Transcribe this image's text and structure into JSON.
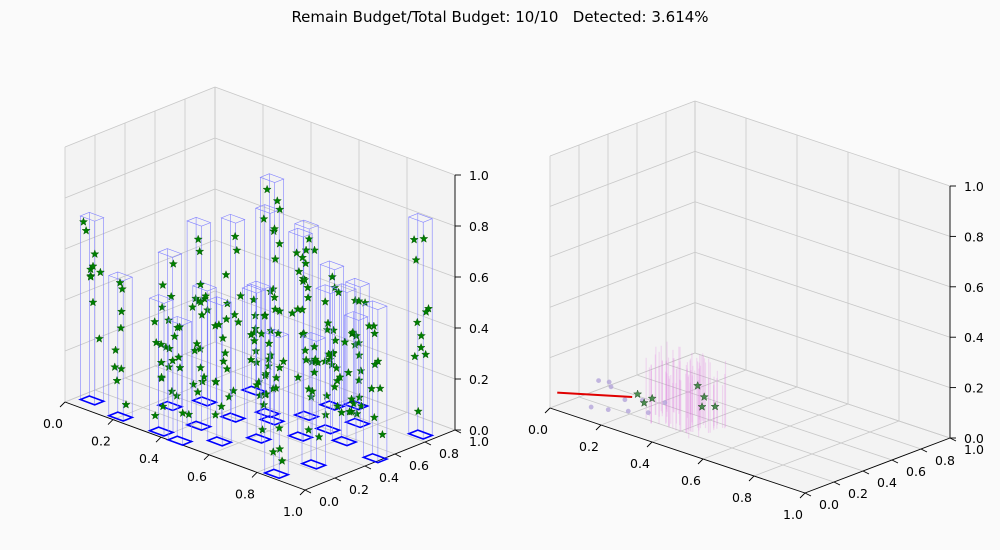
{
  "figure": {
    "title": "Remain Budget/Total Budget: 10/10   Detected: 3.614%"
  },
  "colors": {
    "background": "#fafafa",
    "grid": "#c8c8c8",
    "footprint": "#0000ff",
    "column_edge": "#8080ff",
    "star_marker": "#008000",
    "scatter_point": "#b0a0d8",
    "cloud": "#e070e0",
    "trajectory": "#e00000"
  },
  "chart_data": [
    {
      "type": "scatter",
      "projection": "3d",
      "x_ticks": [
        "0.0",
        "0.2",
        "0.4",
        "0.6",
        "0.8",
        "1.0"
      ],
      "y_ticks": [
        "0.0",
        "0.2",
        "0.4",
        "0.6",
        "0.8",
        "1.0"
      ],
      "z_ticks": [
        "0.0",
        "0.2",
        "0.4",
        "0.6",
        "0.8",
        "1.0"
      ],
      "xlim": [
        0,
        1
      ],
      "ylim": [
        0,
        1
      ],
      "zlim": [
        0,
        1
      ],
      "grid": true,
      "columns": [
        {
          "x": 0.05,
          "y": 0.1,
          "h": 0.72
        },
        {
          "x": 0.2,
          "y": 0.05,
          "h": 0.55
        },
        {
          "x": 0.25,
          "y": 0.3,
          "h": 0.6
        },
        {
          "x": 0.3,
          "y": 0.45,
          "h": 0.45
        },
        {
          "x": 0.37,
          "y": 0.05,
          "h": 0.52
        },
        {
          "x": 0.42,
          "y": 0.22,
          "h": 0.8
        },
        {
          "x": 0.45,
          "y": 0.4,
          "h": 0.78
        },
        {
          "x": 0.5,
          "y": 0.55,
          "h": 0.8
        },
        {
          "x": 0.46,
          "y": 0.03,
          "h": 0.47
        },
        {
          "x": 0.55,
          "y": 0.15,
          "h": 0.55
        },
        {
          "x": 0.55,
          "y": 0.5,
          "h": 0.95
        },
        {
          "x": 0.6,
          "y": 0.65,
          "h": 0.75
        },
        {
          "x": 0.62,
          "y": 0.3,
          "h": 0.6
        },
        {
          "x": 0.7,
          "y": 0.45,
          "h": 0.8
        },
        {
          "x": 0.72,
          "y": 0.6,
          "h": 0.55
        },
        {
          "x": 0.6,
          "y": 0.82,
          "h": 0.55
        },
        {
          "x": 0.85,
          "y": 0.05,
          "h": 0.55
        },
        {
          "x": 0.88,
          "y": 0.25,
          "h": 0.5
        },
        {
          "x": 0.82,
          "y": 0.55,
          "h": 0.6
        },
        {
          "x": 0.75,
          "y": 0.75,
          "h": 0.55
        },
        {
          "x": 0.95,
          "y": 0.85,
          "h": 0.85
        },
        {
          "x": 0.98,
          "y": 0.5,
          "h": 0.6
        },
        {
          "x": 0.35,
          "y": 0.7,
          "h": 0.4
        },
        {
          "x": 0.65,
          "y": 0.9,
          "h": 0.35
        }
      ]
    },
    {
      "type": "scatter",
      "projection": "3d",
      "x_ticks": [
        "0.0",
        "0.2",
        "0.4",
        "0.6",
        "0.8",
        "1.0"
      ],
      "y_ticks": [
        "0.0",
        "0.2",
        "0.4",
        "0.6",
        "0.8",
        "1.0"
      ],
      "z_ticks": [
        "0.0",
        "0.2",
        "0.4",
        "0.6",
        "0.8",
        "1.0"
      ],
      "xlim": [
        0,
        1
      ],
      "ylim": [
        0,
        1
      ],
      "zlim": [
        0,
        1
      ],
      "grid": true,
      "trajectory": [
        {
          "x": 0.0,
          "y": 0.05,
          "z": 0.05
        },
        {
          "x": 0.18,
          "y": 0.25,
          "z": 0.05
        }
      ],
      "points": [
        {
          "x": 0.02,
          "y": 0.3,
          "z": 0.05
        },
        {
          "x": 0.05,
          "y": 0.32,
          "z": 0.05
        },
        {
          "x": 0.08,
          "y": 0.28,
          "z": 0.05
        },
        {
          "x": 0.15,
          "y": 0.02,
          "z": 0.05
        },
        {
          "x": 0.2,
          "y": 0.05,
          "z": 0.05
        },
        {
          "x": 0.25,
          "y": 0.1,
          "z": 0.05
        },
        {
          "x": 0.18,
          "y": 0.2,
          "z": 0.05
        },
        {
          "x": 0.22,
          "y": 0.25,
          "z": 0.05
        },
        {
          "x": 0.28,
          "y": 0.3,
          "z": 0.05
        },
        {
          "x": 0.3,
          "y": 0.15,
          "z": 0.05
        }
      ],
      "cloud": {
        "x_range": [
          0.25,
          0.48
        ],
        "y_range": [
          0.15,
          0.4
        ],
        "z_range": [
          0.0,
          0.28
        ]
      },
      "stars": [
        {
          "x": 0.19,
          "y": 0.27,
          "z": 0.06
        },
        {
          "x": 0.21,
          "y": 0.28,
          "z": 0.03
        },
        {
          "x": 0.23,
          "y": 0.3,
          "z": 0.05
        },
        {
          "x": 0.38,
          "y": 0.35,
          "z": 0.14
        },
        {
          "x": 0.4,
          "y": 0.36,
          "z": 0.1
        },
        {
          "x": 0.38,
          "y": 0.38,
          "z": 0.05
        },
        {
          "x": 0.42,
          "y": 0.4,
          "z": 0.06
        }
      ]
    }
  ]
}
